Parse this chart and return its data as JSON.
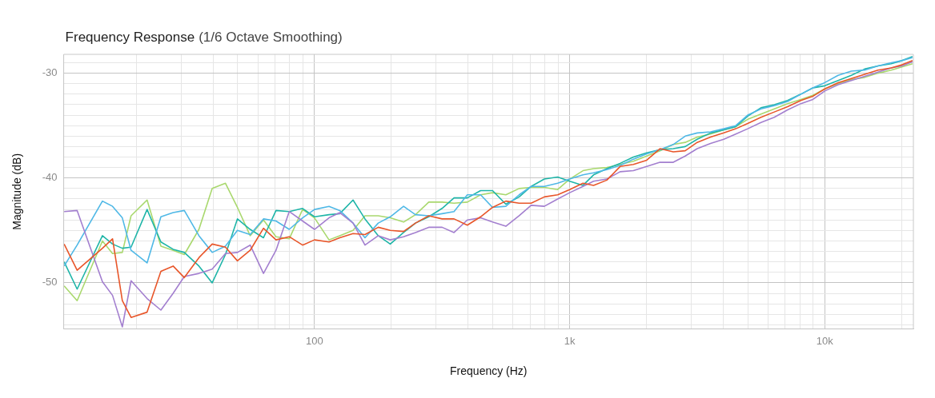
{
  "chart_data": {
    "type": "line",
    "title": "Frequency Response",
    "subtitle": "(1/6 Octave Smoothing)",
    "xlabel": "Frequency (Hz)",
    "ylabel": "Magnitude (dB)",
    "x": [
      10.44,
      11.74,
      14.75,
      16.16,
      17.65,
      19.1,
      22.07,
      25.0,
      27.92,
      30.88,
      35.24,
      39.72,
      44.77,
      49.87,
      55.96,
      63.1,
      70.65,
      79.6,
      89.8,
      100,
      114.0,
      125.6,
      141.6,
      157.7,
      177.8,
      198.1,
      223.4,
      248.8,
      280.4,
      316.2,
      352.3,
      397.2,
      447.7,
      498.7,
      562.3,
      634.1,
      706.6,
      795.8,
      897.6,
      1000,
      1128,
      1241,
      1399,
      1577,
      1778,
      2005,
      2260,
      2548,
      2838,
      3162,
      3566,
      4019,
      4477,
      4987,
      5623,
      6341,
      7147,
      8058,
      8977,
      10000,
      11280,
      12710,
      14330,
      16160,
      18210,
      20060,
      22080
    ],
    "series": [
      {
        "color": "#e8562a",
        "values": [
          -46.3,
          -48.8,
          -46.7,
          -45.8,
          -51.7,
          -53.3,
          -52.8,
          -48.9,
          -48.4,
          -49.5,
          -47.6,
          -46.3,
          -46.6,
          -47.9,
          -46.9,
          -44.8,
          -45.9,
          -45.6,
          -46.4,
          -45.9,
          -46.1,
          -45.7,
          -45.3,
          -45.4,
          -44.7,
          -45.0,
          -45.1,
          -44.3,
          -43.6,
          -43.9,
          -43.9,
          -44.5,
          -43.7,
          -42.8,
          -42.2,
          -42.4,
          -42.4,
          -41.8,
          -41.6,
          -41.1,
          -40.5,
          -40.7,
          -40.2,
          -38.9,
          -38.7,
          -38.3,
          -37.2,
          -37.5,
          -37.4,
          -36.6,
          -36.1,
          -35.7,
          -35.3,
          -34.8,
          -34.2,
          -33.7,
          -33.2,
          -32.6,
          -32.2,
          -31.5,
          -30.9,
          -30.5,
          -30.1,
          -29.7,
          -29.5,
          -29.2,
          -28.8
        ]
      },
      {
        "color": "#a37fcf",
        "values": [
          -43.2,
          -43.1,
          -49.9,
          -51.2,
          -54.2,
          -49.8,
          -51.5,
          -52.6,
          -51.0,
          -49.4,
          -49.1,
          -48.7,
          -47.2,
          -47.1,
          -46.4,
          -49.1,
          -46.9,
          -43.2,
          -44.1,
          -44.9,
          -43.8,
          -43.3,
          -44.3,
          -46.4,
          -45.5,
          -45.9,
          -45.6,
          -45.2,
          -44.7,
          -44.7,
          -45.2,
          -44.0,
          -43.8,
          -44.2,
          -44.6,
          -43.6,
          -42.6,
          -42.7,
          -42.0,
          -41.4,
          -40.8,
          -40.3,
          -40.1,
          -39.4,
          -39.3,
          -38.9,
          -38.5,
          -38.5,
          -37.9,
          -37.2,
          -36.7,
          -36.3,
          -35.8,
          -35.3,
          -34.7,
          -34.2,
          -33.5,
          -32.9,
          -32.5,
          -31.7,
          -31.1,
          -30.7,
          -30.3,
          -29.9,
          -29.5,
          -29.3,
          -28.9
        ]
      },
      {
        "color": "#4fb8e6",
        "values": [
          -48.4,
          -46.4,
          -42.2,
          -42.7,
          -43.8,
          -46.9,
          -48.1,
          -43.7,
          -43.3,
          -43.1,
          -45.5,
          -47.1,
          -46.5,
          -45.0,
          -45.4,
          -43.9,
          -44.1,
          -44.9,
          -43.8,
          -43.0,
          -42.7,
          -43.1,
          -44.3,
          -45.7,
          -44.3,
          -43.7,
          -42.7,
          -43.5,
          -43.6,
          -43.4,
          -43.2,
          -41.6,
          -41.6,
          -42.8,
          -42.7,
          -41.6,
          -40.8,
          -40.8,
          -40.5,
          -40.1,
          -39.7,
          -39.5,
          -39.2,
          -38.8,
          -38.2,
          -37.7,
          -37.3,
          -36.8,
          -36.0,
          -35.7,
          -35.6,
          -35.3,
          -35.0,
          -34.0,
          -33.4,
          -33.1,
          -32.7,
          -32.0,
          -31.4,
          -30.9,
          -30.2,
          -29.8,
          -29.7,
          -29.3,
          -29.0,
          -28.8,
          -28.5
        ]
      },
      {
        "color": "#1fb5a8",
        "values": [
          -48.0,
          -50.6,
          -45.5,
          -46.3,
          -46.7,
          -46.6,
          -43.0,
          -46.1,
          -46.8,
          -47.1,
          -48.4,
          -50.0,
          -47.3,
          -43.9,
          -44.9,
          -45.7,
          -43.1,
          -43.2,
          -42.9,
          -43.7,
          -43.5,
          -43.4,
          -42.1,
          -43.9,
          -45.5,
          -46.3,
          -45.2,
          -44.3,
          -43.7,
          -42.9,
          -41.9,
          -41.9,
          -41.2,
          -41.2,
          -42.5,
          -41.8,
          -40.8,
          -40.1,
          -39.9,
          -40.3,
          -40.7,
          -39.7,
          -39.1,
          -38.6,
          -38.0,
          -37.6,
          -37.3,
          -37.2,
          -37.0,
          -36.3,
          -35.7,
          -35.4,
          -35.1,
          -34.1,
          -33.3,
          -33.0,
          -32.6,
          -32.0,
          -31.4,
          -31.2,
          -30.7,
          -30.2,
          -29.6,
          -29.3,
          -29.1,
          -28.8,
          -28.4
        ]
      },
      {
        "color": "#a9d86e",
        "values": [
          -50.3,
          -51.7,
          -46.0,
          -47.2,
          -47.1,
          -43.6,
          -42.1,
          -46.5,
          -46.9,
          -47.3,
          -44.9,
          -41.0,
          -40.5,
          -42.8,
          -45.5,
          -44.0,
          -45.6,
          -45.8,
          -43.0,
          -43.8,
          -45.9,
          -45.5,
          -45.0,
          -43.6,
          -43.6,
          -43.8,
          -44.2,
          -43.5,
          -42.3,
          -42.3,
          -42.4,
          -42.3,
          -41.6,
          -41.4,
          -41.6,
          -41.0,
          -40.9,
          -40.9,
          -41.1,
          -40.1,
          -39.3,
          -39.1,
          -39.0,
          -38.7,
          -38.4,
          -37.9,
          -37.4,
          -36.8,
          -36.6,
          -36.1,
          -35.8,
          -35.4,
          -35.1,
          -34.4,
          -33.9,
          -33.4,
          -32.9,
          -32.5,
          -32.1,
          -31.5,
          -31.0,
          -30.6,
          -30.4,
          -30.0,
          -29.7,
          -29.4,
          -29.1
        ]
      }
    ],
    "log": "x",
    "xlim": [
      10.4,
      22250
    ],
    "ylim": [
      -54.4,
      -28.2
    ],
    "xticks": [
      {
        "value": 20,
        "label": null
      },
      {
        "value": 30,
        "label": null
      },
      {
        "value": 40,
        "label": null
      },
      {
        "value": 50,
        "label": null
      },
      {
        "value": 60,
        "label": null
      },
      {
        "value": 70,
        "label": null
      },
      {
        "value": 80,
        "label": null
      },
      {
        "value": 90,
        "label": null
      },
      100,
      {
        "value": 200,
        "label": null
      },
      {
        "value": 300,
        "label": null
      },
      {
        "value": 400,
        "label": null
      },
      {
        "value": 500,
        "label": null
      },
      {
        "value": 600,
        "label": null
      },
      {
        "value": 700,
        "label": null
      },
      {
        "value": 800,
        "label": null
      },
      {
        "value": 900,
        "label": null
      },
      {
        "value": 1000,
        "label": "1k"
      },
      {
        "value": 2000,
        "label": null
      },
      {
        "value": 3000,
        "label": null
      },
      {
        "value": 4000,
        "label": null
      },
      {
        "value": 5000,
        "label": null
      },
      {
        "value": 6000,
        "label": null
      },
      {
        "value": 7000,
        "label": null
      },
      {
        "value": 8000,
        "label": null
      },
      {
        "value": 9000,
        "label": null
      },
      {
        "value": 10000,
        "label": "10k"
      },
      {
        "value": 20000,
        "label": null
      }
    ],
    "yticks": [
      {
        "value": -54,
        "label": null
      },
      {
        "value": -53,
        "label": null
      },
      {
        "value": -52,
        "label": null
      },
      {
        "value": -51,
        "label": null
      },
      -50,
      {
        "value": -49,
        "label": null
      },
      {
        "value": -48,
        "label": null
      },
      {
        "value": -47,
        "label": null
      },
      {
        "value": -46,
        "label": null
      },
      {
        "value": -45,
        "label": null
      },
      {
        "value": -44,
        "label": null
      },
      {
        "value": -43,
        "label": null
      },
      {
        "value": -42,
        "label": null
      },
      {
        "value": -41,
        "label": null
      },
      -40,
      {
        "value": -39,
        "label": null
      },
      {
        "value": -38,
        "label": null
      },
      {
        "value": -37,
        "label": null
      },
      {
        "value": -36,
        "label": null
      },
      {
        "value": -35,
        "label": null
      },
      {
        "value": -34,
        "label": null
      },
      {
        "value": -33,
        "label": null
      },
      {
        "value": -32,
        "label": null
      },
      {
        "value": -31,
        "label": null
      },
      -30,
      {
        "value": -29,
        "label": null
      }
    ],
    "grid": true,
    "legend": false,
    "marker": "none",
    "line_style": "solid"
  }
}
